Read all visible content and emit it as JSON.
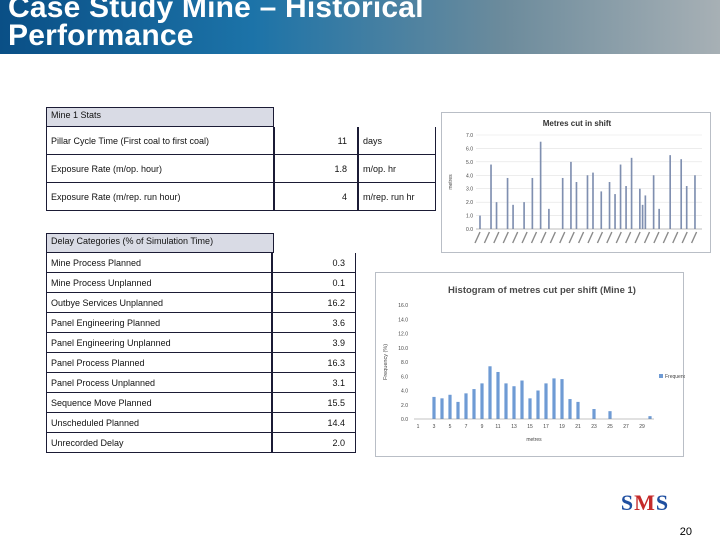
{
  "title": "Case Study Mine – Historical\nPerformance",
  "stats": {
    "header": "Mine 1 Stats",
    "rows": [
      {
        "label": "Pillar Cycle Time (First coal to first coal)",
        "value": "11",
        "unit": "days"
      },
      {
        "label": "Exposure Rate (m/op. hour)",
        "value": "1.8",
        "unit": "m/op. hr"
      },
      {
        "label": "Exposure Rate (m/rep. run hour)",
        "value": "4",
        "unit": "m/rep. run hr"
      }
    ]
  },
  "delays": {
    "header": "Delay Categories (% of Simulation Time)",
    "rows": [
      {
        "label": "Mine Process Planned",
        "value": "0.3"
      },
      {
        "label": "Mine Process Unplanned",
        "value": "0.1"
      },
      {
        "label": "Outbye Services Unplanned",
        "value": "16.2"
      },
      {
        "label": "Panel Engineering Planned",
        "value": "3.6"
      },
      {
        "label": "Panel Engineering Unplanned",
        "value": "3.9"
      },
      {
        "label": "Panel Process Planned",
        "value": "16.3"
      },
      {
        "label": "Panel Process Unplanned",
        "value": "3.1"
      },
      {
        "label": "Sequence Move Planned",
        "value": "15.5"
      },
      {
        "label": "Unscheduled Planned",
        "value": "14.4"
      },
      {
        "label": "Unrecorded Delay",
        "value": "2.0"
      }
    ]
  },
  "chart_data": [
    {
      "type": "bar",
      "title": "Metres cut in shift",
      "ylabel": "metres",
      "ylim": [
        0,
        7.0
      ],
      "yticks": [
        "0.0",
        "1.0",
        "2.0",
        "3.0",
        "4.0",
        "5.0",
        "6.0",
        "7.0"
      ],
      "color": "#7f8fb0",
      "values": [
        0,
        1.0,
        0,
        0,
        0,
        4.8,
        0,
        2.0,
        0,
        0,
        0,
        3.8,
        0,
        1.8,
        0,
        0,
        0,
        2.0,
        0,
        0,
        3.8,
        0,
        0,
        6.5,
        0,
        0,
        1.5,
        0,
        0,
        0,
        0,
        3.8,
        0,
        0,
        5.0,
        0,
        3.5,
        0,
        0,
        0,
        4.0,
        0,
        4.2,
        0,
        0,
        2.8,
        0,
        0,
        3.5,
        0,
        2.6,
        0,
        4.8,
        0,
        3.2,
        0,
        5.3,
        0,
        0,
        3.0,
        1.8,
        2.5,
        0,
        0,
        4.0,
        0,
        1.5,
        0,
        0,
        0,
        5.5,
        0,
        0,
        0,
        5.2,
        0,
        3.2,
        0,
        0,
        4.0,
        0,
        0
      ]
    },
    {
      "type": "bar",
      "title": "Histogram of metres cut per shift (Mine 1)",
      "xlabel": "metres",
      "ylabel": "Frequency (%)",
      "ylim": [
        0,
        16.0
      ],
      "yticks": [
        "0.0",
        "2.0",
        "4.0",
        "6.0",
        "8.0",
        "10.0",
        "12.0",
        "14.0",
        "16.0"
      ],
      "xticks": [
        "1",
        "3",
        "5",
        "7",
        "9",
        "11",
        "13",
        "15",
        "17",
        "19",
        "21",
        "23",
        "25",
        "27",
        "29"
      ],
      "categories": [
        "1",
        "2",
        "3",
        "4",
        "5",
        "6",
        "7",
        "8",
        "9",
        "10",
        "11",
        "12",
        "13",
        "14",
        "15",
        "16",
        "17",
        "18",
        "19",
        "20",
        "21",
        "22",
        "23",
        "24",
        "25",
        "26",
        "27",
        "28",
        "29",
        "30"
      ],
      "values": [
        0,
        0,
        3.1,
        2.9,
        3.4,
        2.4,
        3.6,
        4.2,
        5.0,
        7.4,
        6.6,
        5.0,
        4.6,
        5.4,
        2.9,
        4.0,
        5.0,
        5.7,
        5.6,
        2.8,
        2.4,
        0,
        1.4,
        0,
        1.1,
        0,
        0,
        0,
        0,
        0.4
      ],
      "legend": "Frequency %",
      "legend_position": "right",
      "color": "#6f9bd4"
    }
  ],
  "logo": {
    "s1": "S",
    "m": "M",
    "s2": "S"
  },
  "page_number": "20"
}
